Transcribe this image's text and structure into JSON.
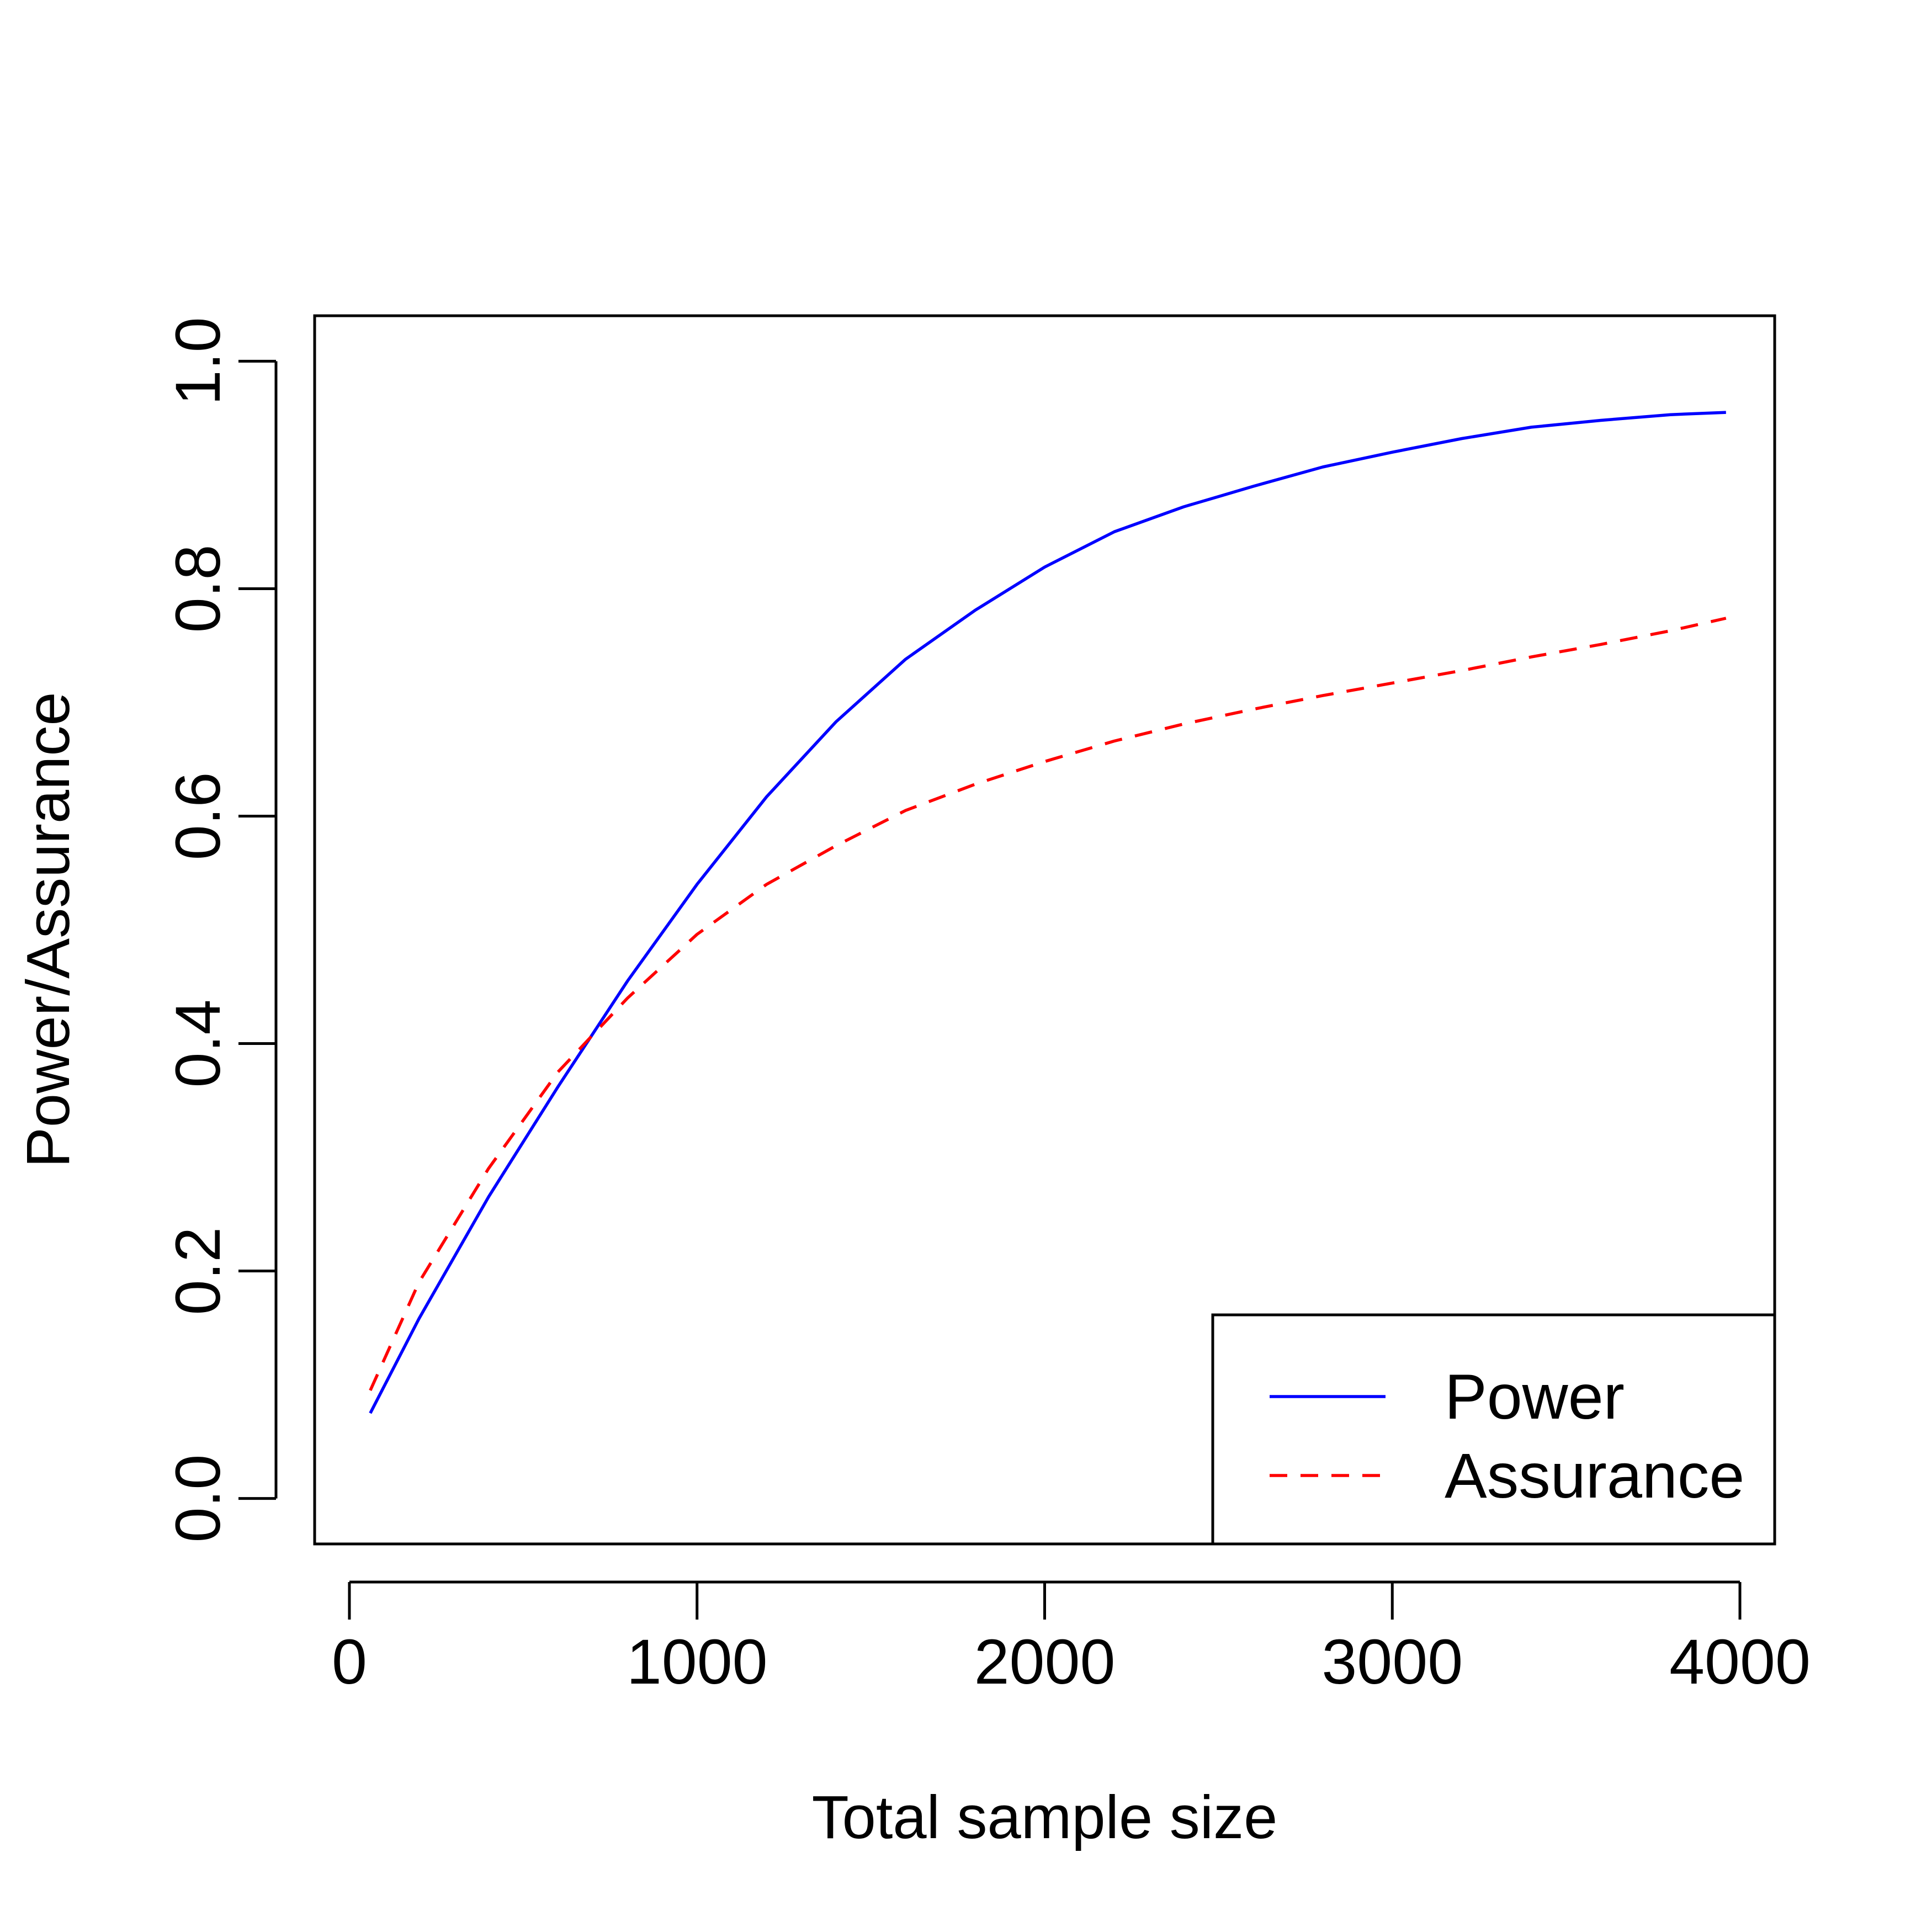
{
  "chart_data": {
    "type": "line",
    "title": "",
    "xlabel": "Total sample size",
    "ylabel": "Power/Assurance",
    "xlim": [
      -100,
      4100
    ],
    "ylim": [
      -0.04,
      1.04
    ],
    "x_ticks": [
      0,
      1000,
      2000,
      3000,
      4000
    ],
    "x_tick_labels": [
      "0",
      "1000",
      "2000",
      "3000",
      "4000"
    ],
    "y_ticks": [
      0.0,
      0.2,
      0.4,
      0.6,
      0.8,
      1.0
    ],
    "y_tick_labels": [
      "0.0",
      "0.2",
      "0.4",
      "0.6",
      "0.8",
      "1.0"
    ],
    "grid": false,
    "legend_position": "bottom-right",
    "series": [
      {
        "name": "Power",
        "color": "#0000FF",
        "line_style": "solid",
        "x": [
          60,
          200,
          400,
          600,
          800,
          1000,
          1200,
          1400,
          1600,
          1800,
          2000,
          2200,
          2400,
          2500,
          2600,
          2800,
          3000,
          3200,
          3400,
          3600,
          3800,
          3960
        ],
        "y": [
          0.075,
          0.158,
          0.265,
          0.362,
          0.455,
          0.54,
          0.617,
          0.683,
          0.738,
          0.781,
          0.819,
          0.85,
          0.872,
          0.881,
          0.89,
          0.907,
          0.92,
          0.932,
          0.942,
          0.948,
          0.953,
          0.955
        ]
      },
      {
        "name": "Assurance",
        "color": "#FF0000",
        "line_style": "dashed",
        "x": [
          60,
          200,
          400,
          600,
          800,
          1000,
          1200,
          1400,
          1600,
          1800,
          2000,
          2200,
          2400,
          2600,
          2800,
          3000,
          3200,
          3400,
          3600,
          3800,
          3960
        ],
        "y": [
          0.095,
          0.19,
          0.29,
          0.375,
          0.44,
          0.496,
          0.54,
          0.574,
          0.605,
          0.628,
          0.648,
          0.666,
          0.681,
          0.694,
          0.706,
          0.717,
          0.728,
          0.74,
          0.751,
          0.763,
          0.774
        ]
      }
    ]
  }
}
